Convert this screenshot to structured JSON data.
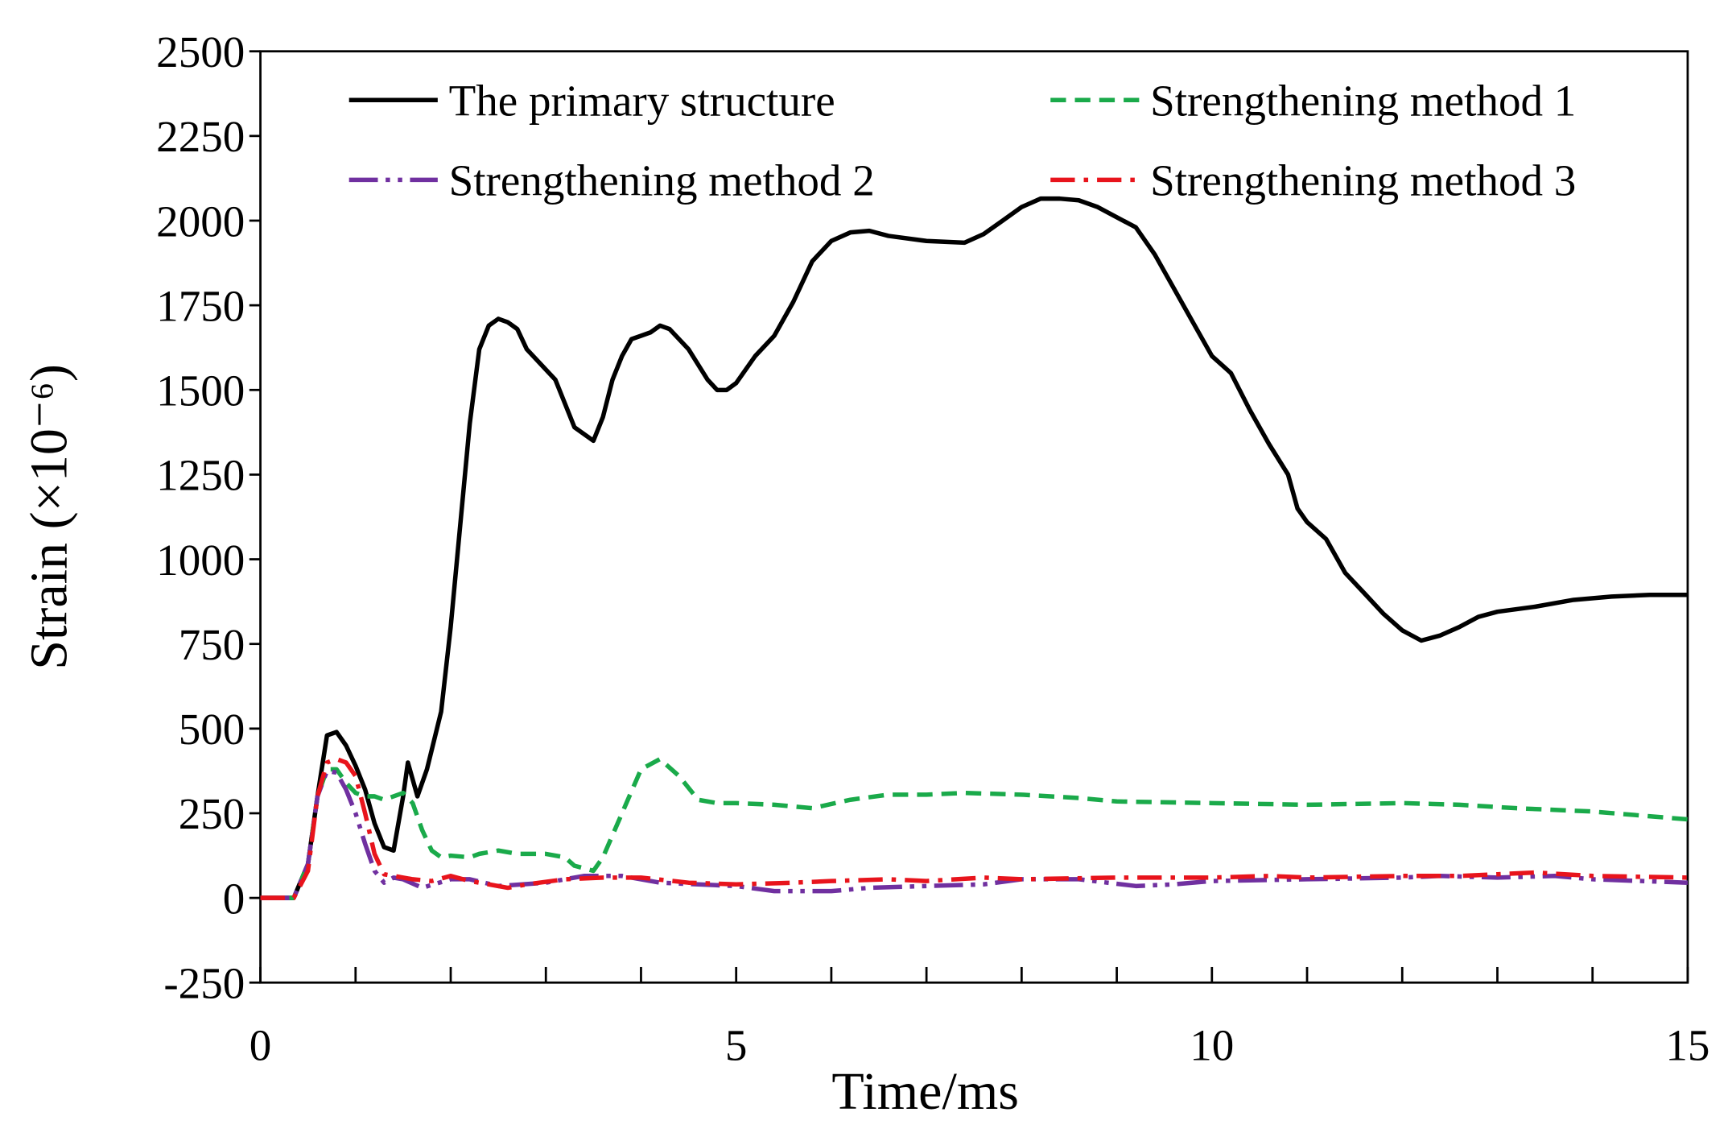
{
  "chart_data": {
    "type": "line",
    "xlabel": "Time/ms",
    "ylabel": "Strain (×10⁻⁶)",
    "xlim": [
      0,
      15
    ],
    "ylim": [
      -250,
      2500
    ],
    "xticks": [
      0,
      5,
      10,
      15
    ],
    "xminor_ticks": [
      1,
      2,
      3,
      4,
      6,
      7,
      8,
      9,
      11,
      12,
      13,
      14
    ],
    "yticks": [
      -250,
      0,
      250,
      500,
      750,
      1000,
      1250,
      1500,
      1750,
      2000,
      2250,
      2500
    ],
    "grid": false,
    "legend": "top",
    "series": [
      {
        "name": "The primary structure",
        "color": "#000000",
        "dash": "solid",
        "x": [
          0,
          0.35,
          0.5,
          0.6,
          0.7,
          0.8,
          0.9,
          1.0,
          1.1,
          1.2,
          1.3,
          1.4,
          1.5,
          1.55,
          1.6,
          1.65,
          1.75,
          1.9,
          2.0,
          2.1,
          2.2,
          2.3,
          2.4,
          2.5,
          2.6,
          2.7,
          2.8,
          3.0,
          3.1,
          3.2,
          3.3,
          3.5,
          3.6,
          3.7,
          3.8,
          3.9,
          4.0,
          4.1,
          4.2,
          4.3,
          4.5,
          4.7,
          4.8,
          4.9,
          5.0,
          5.2,
          5.4,
          5.6,
          5.8,
          6.0,
          6.2,
          6.4,
          6.6,
          7.0,
          7.4,
          7.6,
          7.8,
          8.0,
          8.2,
          8.4,
          8.6,
          8.8,
          9.0,
          9.2,
          9.4,
          9.6,
          9.8,
          10.0,
          10.2,
          10.4,
          10.6,
          10.8,
          10.9,
          11.0,
          11.2,
          11.4,
          11.6,
          11.8,
          12.0,
          12.2,
          12.4,
          12.6,
          12.8,
          13.0,
          13.4,
          13.8,
          14.2,
          14.6,
          15.0
        ],
        "values": [
          0,
          0,
          100,
          300,
          480,
          490,
          450,
          390,
          320,
          220,
          150,
          140,
          300,
          400,
          350,
          300,
          380,
          550,
          800,
          1100,
          1400,
          1620,
          1690,
          1710,
          1700,
          1680,
          1620,
          1560,
          1530,
          1460,
          1390,
          1350,
          1420,
          1530,
          1600,
          1650,
          1660,
          1670,
          1690,
          1680,
          1620,
          1530,
          1500,
          1500,
          1520,
          1600,
          1660,
          1760,
          1880,
          1940,
          1965,
          1970,
          1955,
          1940,
          1935,
          1960,
          2000,
          2040,
          2065,
          2065,
          2060,
          2040,
          2010,
          1980,
          1900,
          1800,
          1700,
          1600,
          1550,
          1440,
          1340,
          1250,
          1150,
          1110,
          1060,
          960,
          900,
          840,
          790,
          760,
          775,
          800,
          830,
          845,
          860,
          880,
          890,
          895,
          895
        ]
      },
      {
        "name": "Strengthening method 1",
        "color": "#1aaa4a",
        "dash": "dash",
        "x": [
          0,
          0.35,
          0.5,
          0.6,
          0.7,
          0.8,
          0.9,
          1.0,
          1.1,
          1.2,
          1.3,
          1.4,
          1.5,
          1.6,
          1.7,
          1.8,
          1.9,
          2.0,
          2.2,
          2.3,
          2.5,
          2.7,
          3.0,
          3.2,
          3.3,
          3.5,
          3.6,
          3.8,
          4.0,
          4.2,
          4.4,
          4.6,
          4.8,
          5.0,
          5.4,
          5.8,
          6.2,
          6.6,
          7.0,
          7.4,
          8.0,
          8.6,
          9.0,
          10.0,
          11.0,
          12.0,
          12.6,
          13.2,
          14.0,
          15.0
        ],
        "values": [
          0,
          0,
          100,
          300,
          380,
          380,
          340,
          310,
          300,
          300,
          290,
          300,
          310,
          280,
          200,
          140,
          120,
          125,
          120,
          130,
          140,
          130,
          130,
          120,
          95,
          80,
          120,
          250,
          380,
          410,
          360,
          290,
          280,
          280,
          275,
          265,
          290,
          305,
          305,
          310,
          305,
          295,
          285,
          280,
          275,
          280,
          275,
          265,
          255,
          232
        ]
      },
      {
        "name": "Strengthening method 2",
        "color": "#7030a0",
        "dash": "dashdotdot",
        "x": [
          0,
          0.35,
          0.5,
          0.6,
          0.7,
          0.8,
          0.9,
          1.0,
          1.1,
          1.2,
          1.3,
          1.4,
          1.5,
          1.7,
          2.0,
          2.2,
          2.5,
          3.0,
          3.4,
          3.8,
          4.2,
          4.6,
          5.0,
          5.4,
          6.0,
          6.4,
          7.0,
          7.6,
          8.0,
          8.6,
          9.2,
          9.6,
          10.0,
          11.0,
          12.0,
          12.4,
          13.0,
          13.6,
          14.0,
          15.0
        ],
        "values": [
          0,
          0,
          100,
          300,
          375,
          370,
          320,
          250,
          160,
          80,
          45,
          60,
          55,
          30,
          55,
          55,
          35,
          45,
          65,
          65,
          45,
          40,
          35,
          20,
          20,
          30,
          35,
          40,
          55,
          55,
          35,
          40,
          50,
          55,
          60,
          65,
          60,
          65,
          55,
          45
        ]
      },
      {
        "name": "Strengthening method 3",
        "color": "#e8141c",
        "dash": "dashdot",
        "x": [
          0,
          0.35,
          0.5,
          0.6,
          0.7,
          0.8,
          0.9,
          1.0,
          1.1,
          1.2,
          1.3,
          1.4,
          1.6,
          1.8,
          2.0,
          2.2,
          2.4,
          2.6,
          2.8,
          3.2,
          3.6,
          4.0,
          4.5,
          5.0,
          5.6,
          6.0,
          6.6,
          7.0,
          7.6,
          8.0,
          9.0,
          10.0,
          10.6,
          11.0,
          12.0,
          12.6,
          13.0,
          13.4,
          14.0,
          15.0
        ],
        "values": [
          0,
          0,
          80,
          300,
          400,
          410,
          400,
          360,
          250,
          130,
          70,
          65,
          55,
          50,
          65,
          50,
          40,
          30,
          40,
          55,
          60,
          60,
          45,
          40,
          45,
          50,
          55,
          50,
          60,
          55,
          60,
          60,
          65,
          60,
          65,
          65,
          70,
          75,
          65,
          60
        ]
      }
    ]
  }
}
